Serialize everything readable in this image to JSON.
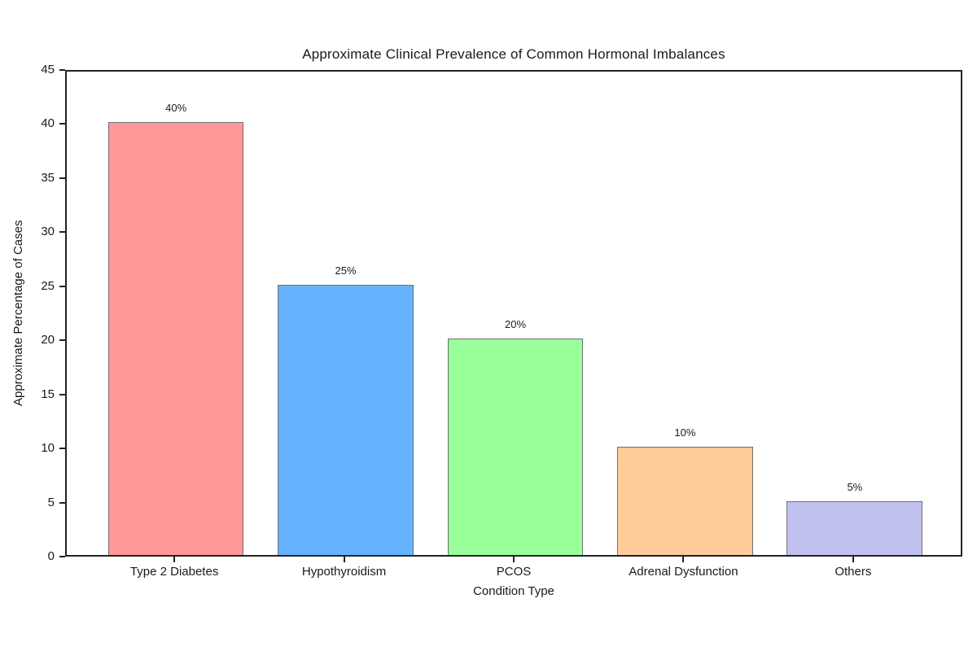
{
  "figure": {
    "background": "#ffffff",
    "text_color": "#1a1a1a",
    "axis_color": "#222222"
  },
  "chart_data": {
    "type": "bar",
    "title": "Approximate Clinical Prevalence of Common Hormonal Imbalances",
    "xlabel": "Condition Type",
    "ylabel": "Approximate Percentage of Cases",
    "categories": [
      "Type 2 Diabetes",
      "Hypothyroidism",
      "PCOS",
      "Adrenal Dysfunction",
      "Others"
    ],
    "values": [
      40,
      25,
      20,
      10,
      5
    ],
    "value_labels": [
      "40%",
      "25%",
      "20%",
      "10%",
      "5%"
    ],
    "bar_colors": [
      "#ff9999",
      "#66b3ff",
      "#99ff99",
      "#ffcc99",
      "#c2c2f0"
    ],
    "bar_edge_color": "#707070",
    "ylim": [
      0,
      45
    ],
    "yticks": [
      0,
      5,
      10,
      15,
      20,
      25,
      30,
      35,
      40,
      45
    ],
    "bar_rel_width": 0.8,
    "grid": false,
    "legend": "none"
  }
}
